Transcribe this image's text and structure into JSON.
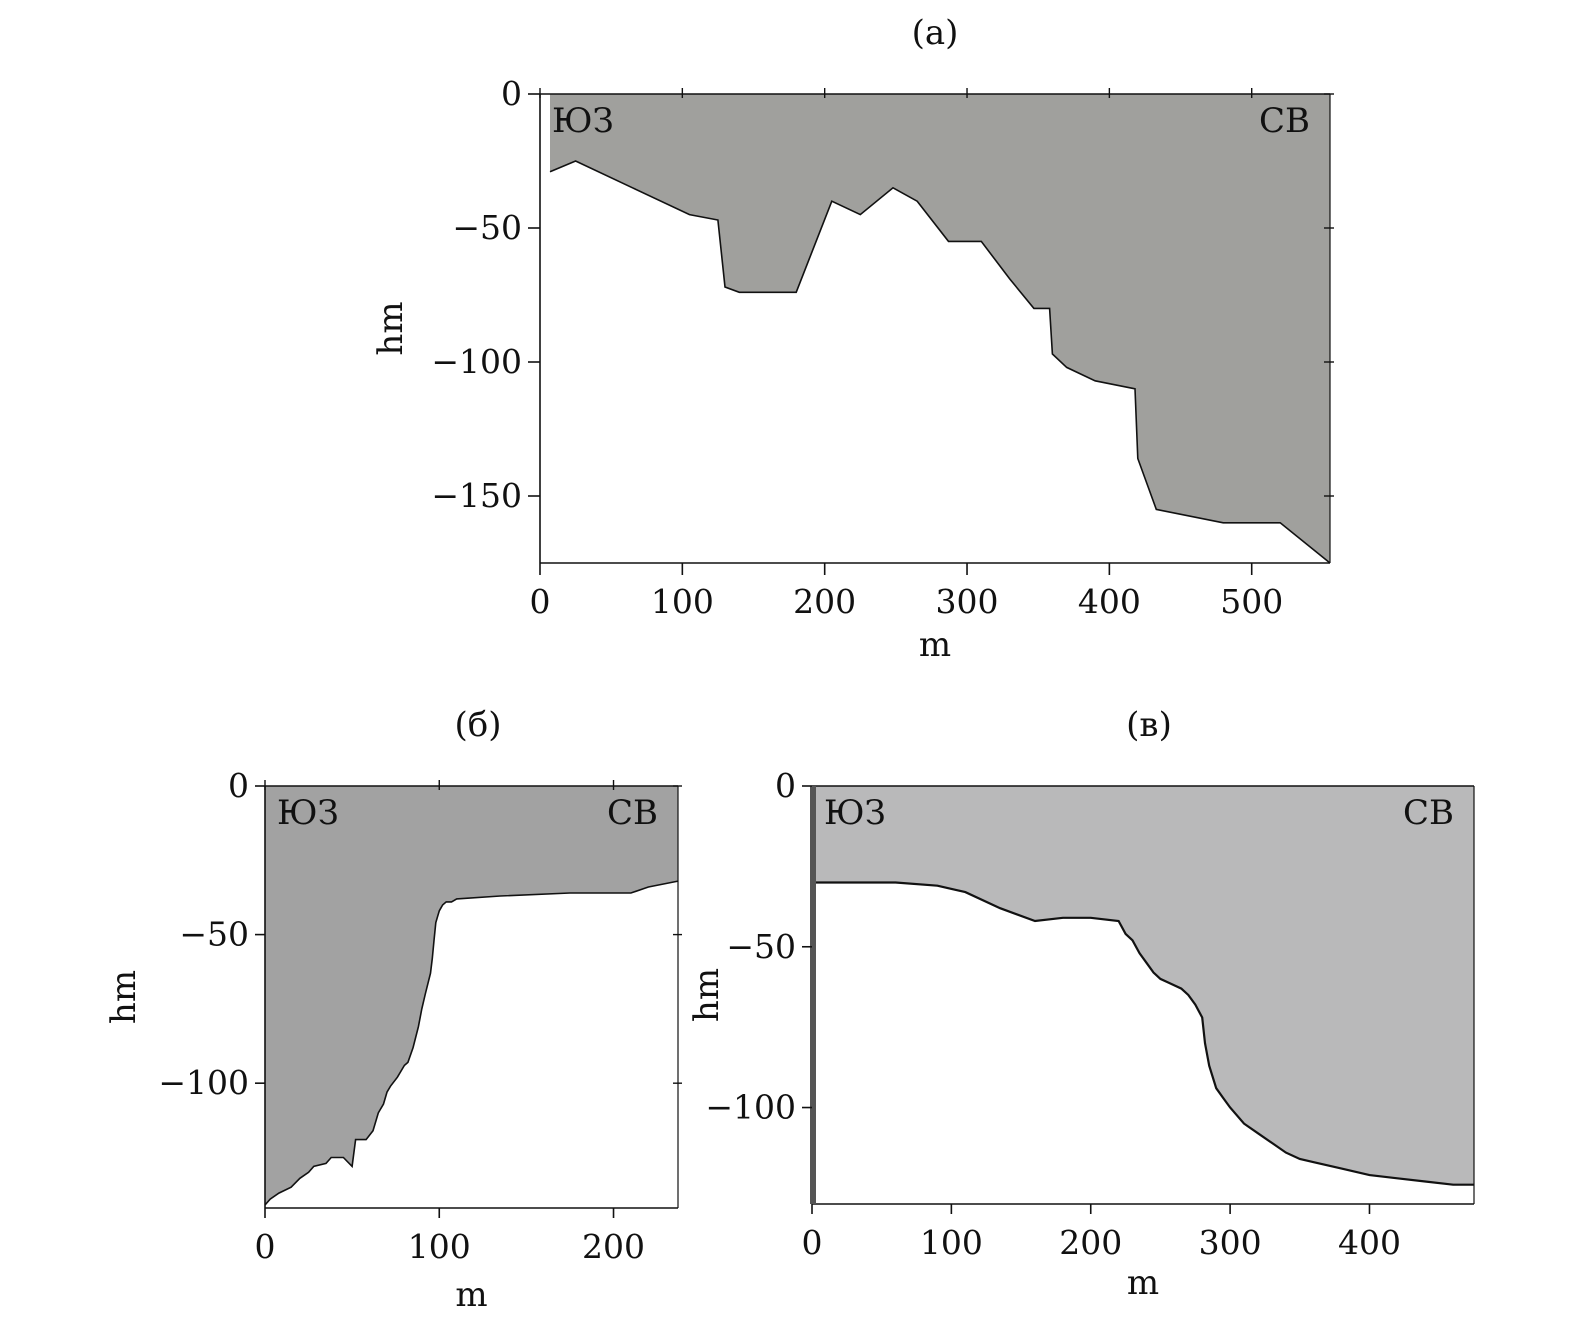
{
  "chart_data": [
    {
      "id": "a",
      "type": "area",
      "title": "(a)",
      "xlabel": "m",
      "ylabel": "hm",
      "xlim": [
        0,
        555
      ],
      "ylim": [
        -175,
        0
      ],
      "xticks": [
        0,
        100,
        200,
        300,
        400,
        500
      ],
      "yticks": [
        0,
        -50,
        -100,
        -150
      ],
      "xtick_labels": [
        "0",
        "100",
        "200",
        "300",
        "400",
        "500"
      ],
      "ytick_labels": [
        "0",
        "−50",
        "−100",
        "−150"
      ],
      "corner_labels": {
        "left": "ЮЗ",
        "right": "СВ"
      },
      "fill_color": "#a0a09d",
      "series": [
        {
          "x": [
            7,
            25,
            65,
            105,
            125,
            130,
            140,
            180,
            205,
            225,
            248,
            265,
            287,
            310,
            330,
            347,
            358,
            360,
            370,
            390,
            418,
            420,
            433,
            480,
            520,
            555
          ],
          "y": [
            -29,
            -25,
            -35,
            -45,
            -47,
            -72,
            -74,
            -74,
            -40,
            -45,
            -35,
            -40,
            -55,
            -55,
            -69,
            -80,
            -80,
            -97,
            -102,
            -107,
            -110,
            -136,
            -155,
            -160,
            -160,
            -175
          ]
        }
      ]
    },
    {
      "id": "b",
      "type": "area",
      "title": "(б)",
      "xlabel": "m",
      "ylabel": "hm",
      "xlim": [
        0,
        237
      ],
      "ylim": [
        -142,
        0
      ],
      "xticks": [
        0,
        100,
        200
      ],
      "yticks": [
        0,
        -50,
        -100
      ],
      "xtick_labels": [
        "0",
        "100",
        "200"
      ],
      "ytick_labels": [
        "0",
        "−50",
        "−100"
      ],
      "corner_labels": {
        "left": "ЮЗ",
        "right": "СВ"
      },
      "fill_color": "#a2a2a2",
      "series": [
        {
          "x": [
            0,
            3,
            8,
            15,
            20,
            25,
            28,
            35,
            38,
            45,
            50,
            52,
            58,
            62,
            65,
            68,
            70,
            72,
            76,
            80,
            82,
            85,
            88,
            90,
            92,
            95,
            96,
            97,
            98,
            99,
            100,
            101,
            102,
            104,
            107,
            110,
            135,
            175,
            210,
            220,
            237
          ],
          "y": [
            -141,
            -139,
            -137,
            -135,
            -132,
            -130,
            -128,
            -127,
            -125,
            -125,
            -128,
            -119,
            -119,
            -116,
            -110,
            -107,
            -103,
            -101,
            -98,
            -94,
            -93,
            -88,
            -81,
            -75,
            -70,
            -63,
            -58,
            -52,
            -46,
            -44,
            -42,
            -41,
            -40,
            -39,
            -39,
            -38,
            -37,
            -36,
            -36,
            -34,
            -32
          ]
        }
      ]
    },
    {
      "id": "v",
      "type": "area",
      "title": "(в)",
      "xlabel": "m",
      "ylabel": "hm",
      "xlim": [
        0,
        475
      ],
      "ylim": [
        -130,
        0
      ],
      "xticks": [
        0,
        100,
        200,
        300,
        400
      ],
      "yticks": [
        0,
        -50,
        -100
      ],
      "xtick_labels": [
        "0",
        "100",
        "200",
        "300",
        "400"
      ],
      "ytick_labels": [
        "0",
        "−50",
        "−100"
      ],
      "corner_labels": {
        "left": "ЮЗ",
        "right": "СВ"
      },
      "fill_color": "#b9b9ba",
      "series": [
        {
          "x": [
            0,
            30,
            60,
            90,
            110,
            135,
            160,
            180,
            200,
            220,
            225,
            230,
            235,
            240,
            245,
            250,
            255,
            260,
            265,
            270,
            275,
            280,
            282,
            285,
            290,
            295,
            300,
            310,
            320,
            330,
            340,
            350,
            360,
            380,
            400,
            420,
            440,
            460,
            475
          ],
          "y": [
            -30,
            -30,
            -30,
            -31,
            -33,
            -38,
            -42,
            -41,
            -41,
            -42,
            -46,
            -48,
            -52,
            -55,
            -58,
            -60,
            -61,
            -62,
            -63,
            -65,
            -68,
            -72,
            -80,
            -87,
            -94,
            -97,
            -100,
            -105,
            -108,
            -111,
            -114,
            -116,
            -117,
            -119,
            -121,
            -122,
            -123,
            -124,
            -124
          ]
        }
      ]
    }
  ]
}
